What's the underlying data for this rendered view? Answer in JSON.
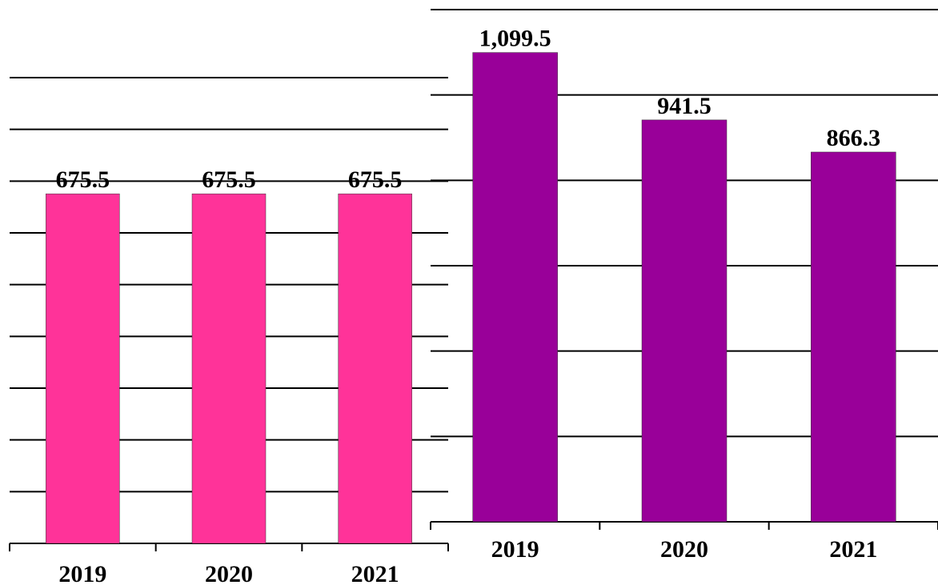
{
  "chart_data": [
    {
      "type": "bar",
      "categories": [
        "2019",
        "2020",
        "2021"
      ],
      "values": [
        675.5,
        675.5,
        675.5
      ],
      "color": "#ff3399",
      "ylim": [
        0,
        900
      ],
      "yticks": [
        0,
        100,
        200,
        300,
        400,
        500,
        600,
        700,
        800,
        900
      ],
      "grid": true
    },
    {
      "type": "bar",
      "categories": [
        "2019",
        "2020",
        "2021"
      ],
      "values": [
        1099.5,
        941.5,
        866.3
      ],
      "value_labels": [
        "1,099.5",
        "941.5",
        "866.3"
      ],
      "color": "#990099",
      "ylim": [
        0,
        1200
      ],
      "yticks": [
        0,
        200,
        400,
        600,
        800,
        1000,
        1200
      ],
      "grid": true
    }
  ]
}
